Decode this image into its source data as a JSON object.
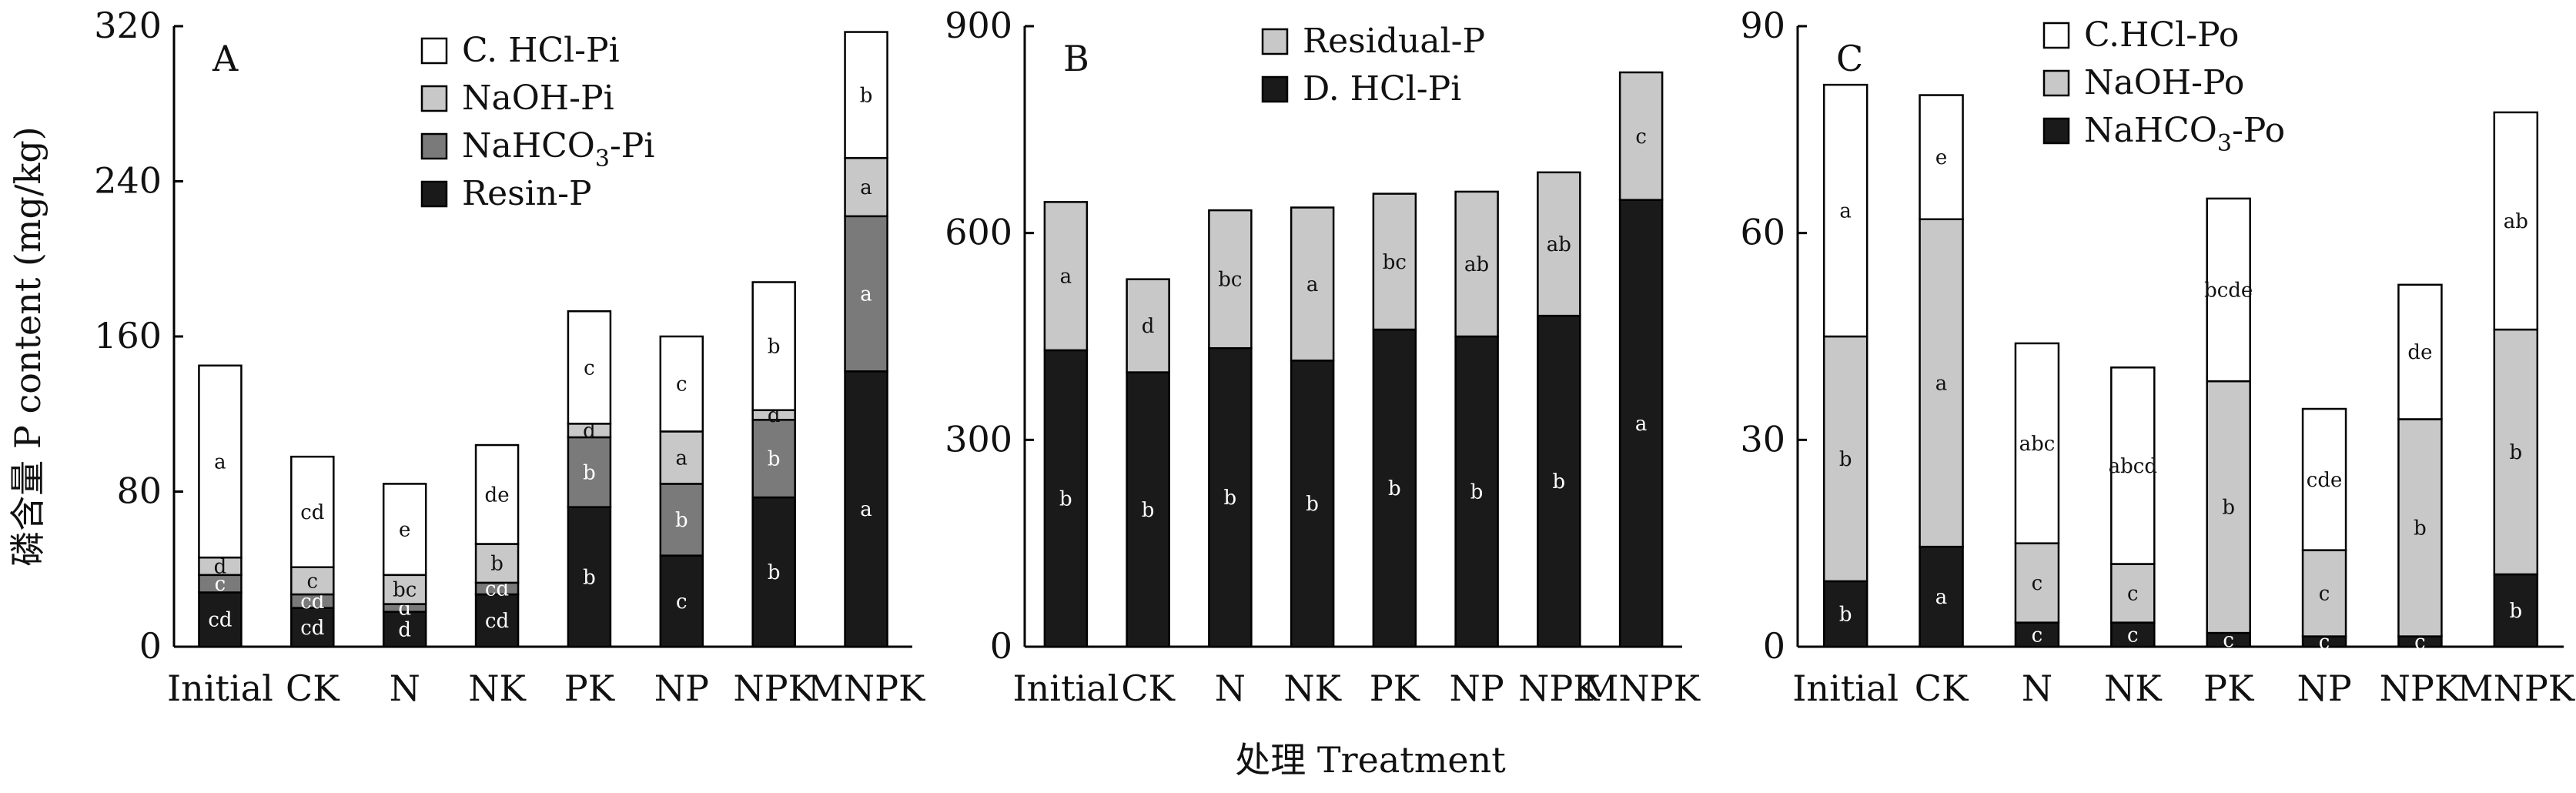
{
  "figure": {
    "ylabel": "磷含量 P content (mg/kg)",
    "xlabel": "处理 Treatment"
  },
  "colors": {
    "white": "#ffffff",
    "light_gray": "#c8c8c8",
    "dark_gray": "#7a7a7a",
    "black": "#1a1a1a",
    "axis": "#000000"
  },
  "chart_data": [
    {
      "id": "A",
      "panel_label": "A",
      "type": "bar",
      "stacked": true,
      "ylim": [
        0,
        320
      ],
      "yticks": [
        "0",
        "80",
        "160",
        "240",
        "320"
      ],
      "categories": [
        "Initial",
        "CK",
        "N",
        "NK",
        "PK",
        "NP",
        "NPK",
        "MNPK"
      ],
      "legend_placement": "top-center",
      "series": [
        {
          "name": "Resin-P",
          "legend_text": "Resin-P",
          "color_key": "black",
          "values": [
            28,
            20,
            18,
            27,
            72,
            47,
            77,
            142
          ],
          "labels": [
            "cd",
            "cd",
            "d",
            "cd",
            "b",
            "c",
            "b",
            "a"
          ]
        },
        {
          "name": "NaHCO3-Pi",
          "legend_text": "NaHCO",
          "legend_sub": "3",
          "legend_after": "-Pi",
          "color_key": "dark_gray",
          "values": [
            9,
            7,
            4,
            6,
            36,
            37,
            40,
            80
          ],
          "labels": [
            "c",
            "cd",
            "d",
            "cd",
            "b",
            "b",
            "b",
            "a"
          ]
        },
        {
          "name": "NaOH-Pi",
          "legend_text": "NaOH-Pi",
          "color_key": "light_gray",
          "values": [
            9,
            14,
            15,
            20,
            7,
            27,
            5,
            30
          ],
          "labels": [
            "d",
            "c",
            "bc",
            "b",
            "d",
            "a",
            "d",
            "a"
          ]
        },
        {
          "name": "C. HCl-Pi",
          "legend_text": "C. HCl-Pi",
          "color_key": "white",
          "values": [
            99,
            57,
            47,
            51,
            58,
            49,
            66,
            65
          ],
          "labels": [
            "a",
            "cd",
            "e",
            "de",
            "c",
            "c",
            "b",
            "b"
          ]
        }
      ]
    },
    {
      "id": "B",
      "panel_label": "B",
      "type": "bar",
      "stacked": true,
      "ylim": [
        0,
        900
      ],
      "yticks": [
        "0",
        "300",
        "600",
        "900"
      ],
      "categories": [
        "Initial",
        "CK",
        "N",
        "NK",
        "PK",
        "NP",
        "NPK",
        "MNPK"
      ],
      "legend_placement": "top-center",
      "series": [
        {
          "name": "D. HCl-Pi",
          "legend_text": "D. HCl-Pi",
          "color_key": "black",
          "values": [
            430,
            398,
            433,
            415,
            460,
            450,
            480,
            648
          ],
          "labels": [
            "b",
            "b",
            "b",
            "b",
            "b",
            "b",
            "b",
            "a"
          ]
        },
        {
          "name": "Residual-P",
          "legend_text": "Residual-P",
          "color_key": "light_gray",
          "values": [
            215,
            135,
            200,
            222,
            197,
            210,
            208,
            185
          ],
          "labels": [
            "a",
            "d",
            "bc",
            "a",
            "bc",
            "ab",
            "ab",
            "c"
          ]
        }
      ]
    },
    {
      "id": "C",
      "panel_label": "C",
      "type": "bar",
      "stacked": true,
      "ylim": [
        0,
        90
      ],
      "yticks": [
        "0",
        "30",
        "60",
        "90"
      ],
      "categories": [
        "Initial",
        "CK",
        "N",
        "NK",
        "PK",
        "NP",
        "NPK",
        "MNPK"
      ],
      "legend_placement": "top-center",
      "series": [
        {
          "name": "NaHCO3-Po",
          "legend_text": "NaHCO",
          "legend_sub": "3",
          "legend_after": "-Po",
          "color_key": "black",
          "values": [
            9.5,
            14.5,
            3.5,
            3.5,
            2,
            1.5,
            1.5,
            10.5
          ],
          "labels": [
            "b",
            "a",
            "c",
            "c",
            "c",
            "c",
            "c",
            "b"
          ]
        },
        {
          "name": "NaOH-Po",
          "legend_text": "NaOH-Po",
          "color_key": "light_gray",
          "values": [
            35.5,
            47.5,
            11.5,
            8.5,
            36.5,
            12.5,
            31.5,
            35.5
          ],
          "labels": [
            "b",
            "a",
            "c",
            "c",
            "b",
            "c",
            "b",
            "b"
          ]
        },
        {
          "name": "C.HCl-Po",
          "legend_text": "C.HCl-Po",
          "color_key": "white",
          "values": [
            36.5,
            18,
            29,
            28.5,
            26.5,
            20.5,
            19.5,
            31.5
          ],
          "labels": [
            "a",
            "e",
            "abc",
            "abcd",
            "bcde",
            "cde",
            "de",
            "ab"
          ]
        }
      ]
    }
  ]
}
